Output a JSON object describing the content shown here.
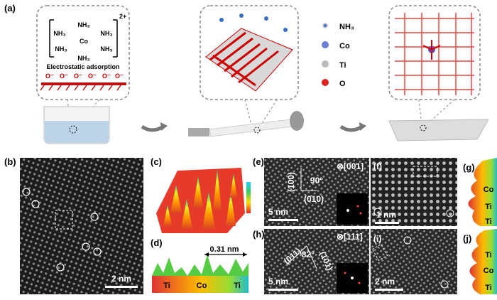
{
  "panel_labels": [
    "(a)",
    "(b)",
    "(c)",
    "(d)",
    "(e)",
    "(f)",
    "(g)",
    "(h)",
    "(i)",
    "(j)"
  ],
  "a": {
    "charge": "2+",
    "ligand": "NH₃",
    "center": "Co",
    "caption": "Electrostatic adsorption",
    "surface": "O⁻",
    "legend": [
      "NH₃",
      "Co",
      "Ti",
      "O"
    ]
  },
  "b": {
    "scale": "2 nm"
  },
  "d": {
    "distance": "0.31 nm",
    "sites": [
      "Ti",
      "Co",
      "Ti"
    ]
  },
  "e": {
    "zone": "⊗[001]",
    "planes": [
      "(100)",
      "(010)"
    ],
    "angle": "90°",
    "scale": "5 nm"
  },
  "f": {
    "scale": "1 nm"
  },
  "g": {
    "sites": [
      "Co",
      "Ti",
      "Ti"
    ]
  },
  "h": {
    "zone": "⊗[111]",
    "planes": [
      "(011)",
      "(101)"
    ],
    "angle": "82°",
    "scale": "5 nm"
  },
  "i": {
    "scale": "2 nm"
  },
  "j": {
    "sites": [
      "Ti",
      "Co",
      "Ti"
    ]
  }
}
